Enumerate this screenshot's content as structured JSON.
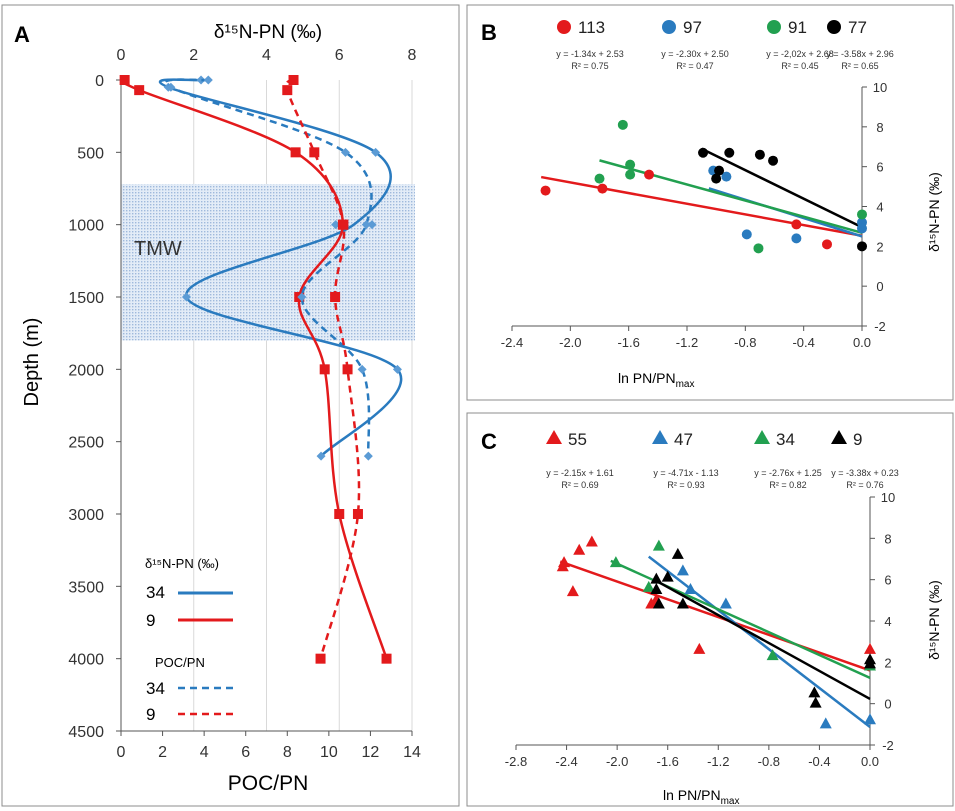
{
  "colors": {
    "red": "#e31a1c",
    "blue": "#2a7bbf",
    "green": "#22a050",
    "black": "#000000",
    "pblue": "#5b9bd5",
    "axis": "#555555",
    "grid": "#d9d9d9",
    "tmw": "#c5d6ea"
  },
  "chart_data": [
    {
      "panel": "A",
      "type": "line",
      "title": "δ¹⁵N-PN (‰)",
      "xlabel_top": "δ¹⁵N-PN (‰)",
      "xlabel_bottom": "POC/PN",
      "ylabel": "Depth (m)",
      "top_xlim": [
        0,
        8
      ],
      "top_ticks": [
        "0",
        "2",
        "4",
        "6",
        "8"
      ],
      "bottom_xlim": [
        0,
        14
      ],
      "bottom_ticks": [
        "0",
        "2",
        "4",
        "6",
        "8",
        "10",
        "12",
        "14"
      ],
      "ylim": [
        0,
        4500
      ],
      "y_ticks": [
        "0",
        "500",
        "1000",
        "1500",
        "2000",
        "2500",
        "3000",
        "3500",
        "4000",
        "4500"
      ],
      "band": {
        "label": "TMW",
        "depth_range": [
          720,
          1800
        ]
      },
      "series": [
        {
          "name": "δ15N-PN 34",
          "axis": "top",
          "color": "blue",
          "dash": false,
          "marker": "diamond",
          "points": [
            [
              2.2,
              0
            ],
            [
              1.3,
              50
            ],
            [
              7.0,
              500
            ],
            [
              5.9,
              1000
            ],
            [
              6.9,
              1000
            ],
            [
              1.8,
              1500
            ],
            [
              7.6,
              2000
            ],
            [
              5.5,
              2600
            ]
          ]
        },
        {
          "name": "δ15N-PN 9",
          "axis": "top",
          "color": "red",
          "dash": false,
          "marker": "square",
          "points": [
            [
              0.1,
              0
            ],
            [
              0.5,
              70
            ],
            [
              4.8,
              500
            ],
            [
              6.1,
              1000
            ],
            [
              4.9,
              1500
            ],
            [
              5.6,
              2000
            ],
            [
              6.0,
              3000
            ],
            [
              7.3,
              4000
            ]
          ]
        },
        {
          "name": "POC/PN 34",
          "axis": "bottom",
          "color": "blue",
          "dash": true,
          "marker": "diamond",
          "points": [
            [
              4.2,
              0
            ],
            [
              2.4,
              50
            ],
            [
              10.8,
              500
            ],
            [
              11.8,
              1000
            ],
            [
              8.7,
              1500
            ],
            [
              11.6,
              2000
            ],
            [
              11.9,
              2600
            ]
          ]
        },
        {
          "name": "POC/PN 9",
          "axis": "bottom",
          "color": "red",
          "dash": true,
          "marker": "square",
          "points": [
            [
              8.3,
              0
            ],
            [
              8.0,
              70
            ],
            [
              9.3,
              500
            ],
            [
              10.7,
              1000
            ],
            [
              10.3,
              1500
            ],
            [
              10.9,
              2000
            ],
            [
              11.4,
              3000
            ],
            [
              9.6,
              4000
            ]
          ]
        }
      ],
      "legend": {
        "header1": "δ¹⁵N-PN (‰)",
        "header2": "POC/PN",
        "labels": [
          "34",
          "9",
          "34",
          "9"
        ]
      }
    },
    {
      "panel": "B",
      "type": "scatter",
      "xlabel": "ln PN/PN",
      "xlabel_sub": "max",
      "ylabel": "δ¹⁵N-PN (‰)",
      "xlim": [
        -2.4,
        0
      ],
      "x_ticks": [
        "-2.4",
        "-2.0",
        "-1.6",
        "-1.2",
        "-0.8",
        "-0.4",
        "0.0"
      ],
      "ylim": [
        -2,
        10
      ],
      "y_ticks": [
        "10",
        "8",
        "6",
        "4",
        "2",
        "0",
        "-2"
      ],
      "series": [
        {
          "name": "113",
          "color": "red",
          "marker": "circle",
          "slope": -1.34,
          "intercept": 2.53,
          "x_range": [
            -2.2,
            0
          ],
          "equation": "y = -1.34x + 2.53",
          "r2": "R² = 0.75",
          "points": [
            [
              -2.17,
              4.8
            ],
            [
              -1.78,
              4.9
            ],
            [
              -1.46,
              5.6
            ],
            [
              -0.45,
              3.1
            ],
            [
              -0.24,
              2.1
            ]
          ]
        },
        {
          "name": "97",
          "color": "blue",
          "marker": "circle",
          "slope": -2.3,
          "intercept": 2.5,
          "x_range": [
            -1.05,
            0
          ],
          "equation": "y = -2.30x + 2.50",
          "r2": "R² = 0.47",
          "points": [
            [
              -1.02,
              5.8
            ],
            [
              -0.93,
              5.5
            ],
            [
              -0.79,
              2.6
            ],
            [
              -0.45,
              2.4
            ],
            [
              0,
              3.2
            ],
            [
              0,
              2.9
            ]
          ]
        },
        {
          "name": "91",
          "color": "green",
          "marker": "circle",
          "slope": -2.02,
          "intercept": 2.68,
          "x_range": [
            -1.8,
            0
          ],
          "equation": "y = -2,02x + 2.68",
          "r2": "R² = 0.45",
          "points": [
            [
              -1.64,
              8.1
            ],
            [
              -1.59,
              6.1
            ],
            [
              -1.59,
              5.6
            ],
            [
              -1.8,
              5.4
            ],
            [
              -0.71,
              1.9
            ],
            [
              0,
              3.6
            ]
          ]
        },
        {
          "name": "77",
          "color": "black",
          "marker": "circle",
          "slope": -3.58,
          "intercept": 2.96,
          "x_range": [
            -1.1,
            0
          ],
          "equation": "y = -3.58x + 2.96",
          "r2": "R² = 0.65",
          "points": [
            [
              -1.09,
              6.7
            ],
            [
              -0.91,
              6.7
            ],
            [
              -0.7,
              6.6
            ],
            [
              -0.61,
              6.3
            ],
            [
              -0.98,
              5.8
            ],
            [
              -1.0,
              5.4
            ],
            [
              0,
              2.0
            ]
          ]
        }
      ]
    },
    {
      "panel": "C",
      "type": "scatter",
      "xlabel": "ln PN/PN",
      "xlabel_sub": "max",
      "ylabel": "δ¹⁵N-PN (‰)",
      "xlim": [
        -2.8,
        0
      ],
      "x_ticks": [
        "-2.8",
        "-2.4",
        "-2.0",
        "-1.6",
        "-1.2",
        "-0.8",
        "-0.4",
        "0.0"
      ],
      "ylim": [
        -2,
        10
      ],
      "y_ticks": [
        "10",
        "8",
        "6",
        "4",
        "2",
        "0",
        "-2"
      ],
      "series": [
        {
          "name": "55",
          "color": "red",
          "marker": "triangle",
          "slope": -2.15,
          "intercept": 1.61,
          "x_range": [
            -2.45,
            0
          ],
          "equation": "y = -2.15x + 1.61",
          "r2": "R² = 0.69",
          "points": [
            [
              -2.43,
              6.6
            ],
            [
              -2.42,
              6.8
            ],
            [
              -2.3,
              7.4
            ],
            [
              -2.2,
              7.8
            ],
            [
              -2.35,
              5.4
            ],
            [
              -1.73,
              4.8
            ],
            [
              -1.69,
              5.0
            ],
            [
              -1.35,
              2.6
            ],
            [
              0,
              2.6
            ]
          ]
        },
        {
          "name": "47",
          "color": "blue",
          "marker": "triangle",
          "slope": -4.71,
          "intercept": -1.13,
          "x_range": [
            -1.75,
            0
          ],
          "equation": "y = -4.71x - 1.13",
          "r2": "R² = 0.93",
          "points": [
            [
              -1.48,
              6.4
            ],
            [
              -1.42,
              5.5
            ],
            [
              -1.14,
              4.8
            ],
            [
              -0.35,
              -1.0
            ],
            [
              0,
              -0.8
            ]
          ]
        },
        {
          "name": "34",
          "color": "green",
          "marker": "triangle",
          "slope": -2.76,
          "intercept": 1.25,
          "x_range": [
            -2.05,
            0
          ],
          "equation": "y = -2.76x + 1.25",
          "r2": "R² = 0.82",
          "points": [
            [
              -2.01,
              6.8
            ],
            [
              -1.67,
              7.6
            ],
            [
              -1.75,
              5.6
            ],
            [
              -0.77,
              2.3
            ],
            [
              0,
              1.8
            ]
          ]
        },
        {
          "name": "9",
          "color": "black",
          "marker": "triangle",
          "slope": -3.38,
          "intercept": 0.23,
          "x_range": [
            -1.7,
            0
          ],
          "equation": "y = -3.38x + 0.23",
          "r2": "R² = 0.76",
          "points": [
            [
              -1.52,
              7.2
            ],
            [
              -1.69,
              6.0
            ],
            [
              -1.6,
              6.1
            ],
            [
              -1.69,
              5.5
            ],
            [
              -1.67,
              4.8
            ],
            [
              -1.48,
              4.8
            ],
            [
              -0.44,
              0.5
            ],
            [
              -0.43,
              0.0
            ],
            [
              0,
              2.1
            ],
            [
              0,
              1.9
            ]
          ]
        }
      ]
    }
  ]
}
